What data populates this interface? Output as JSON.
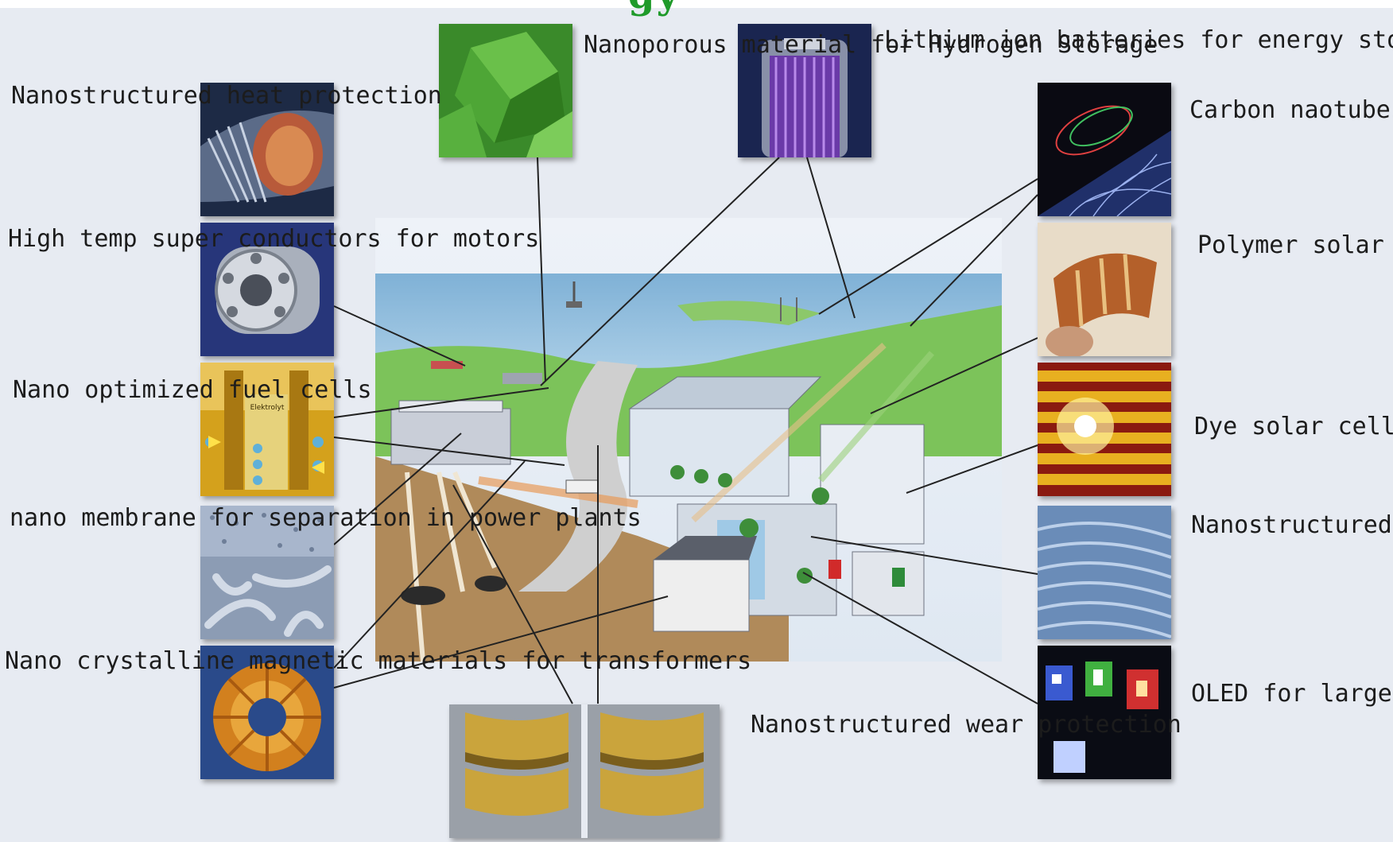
{
  "title_fragment": "gy",
  "labels": {
    "heat": "Nanostructured\nheat protection",
    "super": "High temp super\nconductors for\nmotors",
    "fuel": "Nano optimized\nfuel cells",
    "membrane": "nano membrane\nfor separation in\npower plants",
    "magnetic": "Nano crystalline\nmagnetic materials\nfor transformers",
    "hydrogen": "Nanoporous\nmaterial for\nHydrogen\nStorage",
    "lithium": "Lithium ion\nbatteries for\nenergy\nstorage",
    "carbon": "Carbon naotubes\nfor rotor blades",
    "polymer": "Polymer solar\ncells",
    "dye": "Dye solar cells",
    "thermo": "Nanostructured\nthermoelectric\nmaterials for\npower supply",
    "oled": "OLED for large\narea display",
    "wear": "Nanostructured\nwear protection"
  },
  "fuel_cell_text": "Elektrolyt",
  "icons": [
    "turbine-photo",
    "superconductor-motor-photo",
    "fuel-cell-diagram",
    "membrane-micrograph",
    "toroidal-core-photo",
    "nanoporous-crystal-micrograph",
    "battery-cutaway-photo",
    "carbon-nanotube-render",
    "polymer-solar-film-photo",
    "dye-solar-cell-photo",
    "thermoelectric-layers-micrograph",
    "oled-display-photo",
    "wear-protection-drill-photo",
    "energy-landscape-illustration"
  ],
  "colors": {
    "background": "#e7ebf2",
    "leader": "#222222",
    "title": "#1f9a2a"
  }
}
